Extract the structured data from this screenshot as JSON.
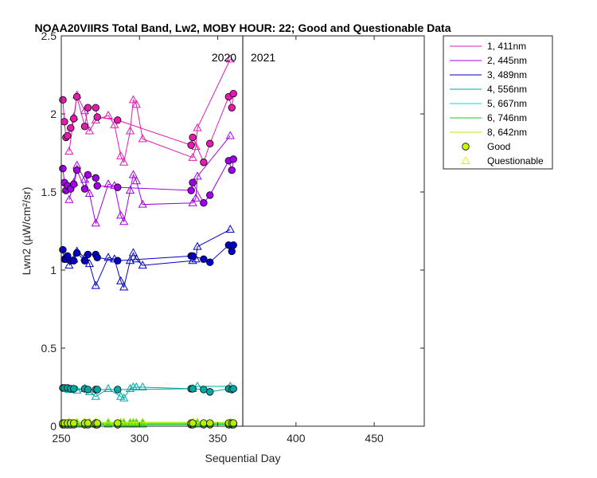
{
  "chart_data": {
    "type": "line",
    "title": "NOAA20VIIRS Total Band, Lw2, MOBY HOUR: 22;  Good and Questionable Data",
    "xlabel": "Sequential Day",
    "ylabel": "Lwn2 (µW/cm²/sr)",
    "xlim": [
      250,
      482
    ],
    "ylim": [
      0,
      2.5
    ],
    "xticks": [
      250,
      300,
      350,
      400,
      450
    ],
    "yticks": [
      0,
      0.5,
      1,
      1.5,
      2,
      2.5
    ],
    "xtick_labels": [
      "250",
      "300",
      "350",
      "400",
      "450"
    ],
    "ytick_labels": [
      "0",
      "0.5",
      "1",
      "1.5",
      "2",
      "2.5"
    ],
    "grid": false,
    "legend_position": "outside-top-right",
    "year_divider": {
      "x": 366,
      "left_label": "2020",
      "right_label": "2021"
    },
    "series": [
      {
        "name": "1, 411nm",
        "color": "#e31cb0",
        "good": [
          [
            251,
            2.09
          ],
          [
            252,
            1.95
          ],
          [
            253,
            1.85
          ],
          [
            254,
            1.86
          ],
          [
            256,
            1.91
          ],
          [
            258,
            1.97
          ],
          [
            260,
            2.11
          ],
          [
            265,
            1.92
          ],
          [
            267,
            2.04
          ],
          [
            272,
            2.04
          ],
          [
            273,
            1.98
          ],
          [
            286,
            1.96
          ],
          [
            333,
            1.8
          ],
          [
            334,
            1.85
          ],
          [
            341,
            1.69
          ],
          [
            345,
            1.81
          ],
          [
            357,
            2.11
          ],
          [
            359,
            2.04
          ],
          [
            360,
            2.13
          ]
        ],
        "questionable": [
          [
            255,
            1.76
          ],
          [
            258,
            1.98
          ],
          [
            260,
            2.12
          ],
          [
            265,
            2.02
          ],
          [
            268,
            1.89
          ],
          [
            272,
            1.96
          ],
          [
            280,
            1.99
          ],
          [
            284,
            1.93
          ],
          [
            288,
            1.73
          ],
          [
            290,
            1.69
          ],
          [
            294,
            1.89
          ],
          [
            296,
            2.09
          ],
          [
            298,
            2.06
          ],
          [
            302,
            1.84
          ],
          [
            334,
            1.72
          ],
          [
            336,
            1.79
          ],
          [
            337,
            1.91
          ],
          [
            358,
            2.35
          ]
        ]
      },
      {
        "name": "2, 445nm",
        "color": "#a100e6",
        "good": [
          [
            251,
            1.65
          ],
          [
            252,
            1.56
          ],
          [
            253,
            1.51
          ],
          [
            254,
            1.54
          ],
          [
            256,
            1.52
          ],
          [
            258,
            1.55
          ],
          [
            260,
            1.64
          ],
          [
            265,
            1.52
          ],
          [
            267,
            1.61
          ],
          [
            272,
            1.59
          ],
          [
            273,
            1.54
          ],
          [
            286,
            1.53
          ],
          [
            333,
            1.51
          ],
          [
            334,
            1.56
          ],
          [
            341,
            1.43
          ],
          [
            345,
            1.48
          ],
          [
            357,
            1.7
          ],
          [
            359,
            1.64
          ],
          [
            360,
            1.71
          ]
        ],
        "questionable": [
          [
            255,
            1.45
          ],
          [
            258,
            1.56
          ],
          [
            260,
            1.67
          ],
          [
            265,
            1.58
          ],
          [
            268,
            1.49
          ],
          [
            272,
            1.3
          ],
          [
            280,
            1.55
          ],
          [
            284,
            1.54
          ],
          [
            288,
            1.35
          ],
          [
            290,
            1.31
          ],
          [
            294,
            1.51
          ],
          [
            296,
            1.61
          ],
          [
            298,
            1.57
          ],
          [
            302,
            1.42
          ],
          [
            334,
            1.43
          ],
          [
            336,
            1.46
          ],
          [
            337,
            1.6
          ],
          [
            358,
            1.86
          ]
        ]
      },
      {
        "name": "3, 489nm",
        "color": "#0000c8",
        "good": [
          [
            251,
            1.13
          ],
          [
            252,
            1.07
          ],
          [
            253,
            1.07
          ],
          [
            254,
            1.09
          ],
          [
            256,
            1.06
          ],
          [
            258,
            1.06
          ],
          [
            260,
            1.11
          ],
          [
            265,
            1.06
          ],
          [
            267,
            1.1
          ],
          [
            272,
            1.1
          ],
          [
            273,
            1.08
          ],
          [
            286,
            1.06
          ],
          [
            333,
            1.09
          ],
          [
            334,
            1.09
          ],
          [
            341,
            1.07
          ],
          [
            345,
            1.05
          ],
          [
            357,
            1.16
          ],
          [
            359,
            1.12
          ],
          [
            360,
            1.16
          ]
        ],
        "questionable": [
          [
            255,
            1.03
          ],
          [
            258,
            1.07
          ],
          [
            260,
            1.12
          ],
          [
            265,
            1.08
          ],
          [
            268,
            1.04
          ],
          [
            272,
            0.9
          ],
          [
            280,
            1.08
          ],
          [
            284,
            1.07
          ],
          [
            288,
            0.93
          ],
          [
            290,
            0.89
          ],
          [
            294,
            1.06
          ],
          [
            296,
            1.11
          ],
          [
            298,
            1.07
          ],
          [
            302,
            1.03
          ],
          [
            334,
            1.06
          ],
          [
            336,
            1.07
          ],
          [
            337,
            1.15
          ],
          [
            358,
            1.26
          ]
        ]
      },
      {
        "name": "4, 556nm",
        "color": "#00a8a8",
        "good": [
          [
            251,
            0.245
          ],
          [
            252,
            0.245
          ],
          [
            254,
            0.245
          ],
          [
            256,
            0.24
          ],
          [
            258,
            0.24
          ],
          [
            265,
            0.24
          ],
          [
            267,
            0.235
          ],
          [
            272,
            0.235
          ],
          [
            273,
            0.235
          ],
          [
            286,
            0.235
          ],
          [
            333,
            0.24
          ],
          [
            334,
            0.24
          ],
          [
            341,
            0.235
          ],
          [
            345,
            0.22
          ],
          [
            357,
            0.24
          ],
          [
            359,
            0.235
          ],
          [
            360,
            0.24
          ]
        ],
        "questionable": [
          [
            255,
            0.235
          ],
          [
            260,
            0.23
          ],
          [
            265,
            0.24
          ],
          [
            268,
            0.22
          ],
          [
            272,
            0.19
          ],
          [
            280,
            0.24
          ],
          [
            288,
            0.19
          ],
          [
            290,
            0.18
          ],
          [
            294,
            0.24
          ],
          [
            296,
            0.25
          ],
          [
            298,
            0.25
          ],
          [
            302,
            0.25
          ],
          [
            334,
            0.24
          ],
          [
            337,
            0.255
          ],
          [
            358,
            0.255
          ]
        ]
      },
      {
        "name": "5, 667nm",
        "color": "#00d8f0",
        "good": [
          [
            251,
            0.015
          ],
          [
            252,
            0.015
          ],
          [
            254,
            0.015
          ],
          [
            256,
            0.015
          ],
          [
            258,
            0.015
          ],
          [
            265,
            0.015
          ],
          [
            267,
            0.015
          ],
          [
            272,
            0.015
          ],
          [
            273,
            0.015
          ],
          [
            286,
            0.015
          ],
          [
            333,
            0.015
          ],
          [
            334,
            0.015
          ],
          [
            341,
            0.015
          ],
          [
            345,
            0.015
          ],
          [
            357,
            0.015
          ],
          [
            359,
            0.015
          ],
          [
            360,
            0.015
          ]
        ],
        "questionable": [
          [
            255,
            0.02
          ],
          [
            260,
            0.02
          ],
          [
            265,
            0.02
          ],
          [
            268,
            0.02
          ],
          [
            272,
            0.02
          ],
          [
            280,
            0.02
          ],
          [
            288,
            0.02
          ],
          [
            290,
            0.02
          ],
          [
            294,
            0.02
          ],
          [
            296,
            0.02
          ],
          [
            298,
            0.02
          ],
          [
            302,
            0.02
          ],
          [
            334,
            0.02
          ],
          [
            337,
            0.02
          ],
          [
            358,
            0.02
          ]
        ]
      },
      {
        "name": "6, 746nm",
        "color": "#1ec81e",
        "good": [
          [
            251,
            0.01
          ],
          [
            252,
            0.01
          ],
          [
            254,
            0.01
          ],
          [
            256,
            0.01
          ],
          [
            258,
            0.01
          ],
          [
            265,
            0.01
          ],
          [
            267,
            0.01
          ],
          [
            272,
            0.01
          ],
          [
            273,
            0.01
          ],
          [
            286,
            0.01
          ],
          [
            333,
            0.01
          ],
          [
            334,
            0.01
          ],
          [
            341,
            0.01
          ],
          [
            345,
            0.01
          ],
          [
            357,
            0.01
          ],
          [
            359,
            0.01
          ],
          [
            360,
            0.01
          ]
        ],
        "questionable": [
          [
            255,
            0.012
          ],
          [
            260,
            0.012
          ],
          [
            265,
            0.012
          ],
          [
            268,
            0.012
          ],
          [
            272,
            0.012
          ],
          [
            280,
            0.012
          ],
          [
            288,
            0.012
          ],
          [
            290,
            0.012
          ],
          [
            294,
            0.012
          ],
          [
            296,
            0.012
          ],
          [
            298,
            0.012
          ],
          [
            302,
            0.012
          ],
          [
            334,
            0.012
          ],
          [
            337,
            0.012
          ],
          [
            358,
            0.012
          ]
        ]
      },
      {
        "name": "8, 642nm",
        "color": "#b4f000",
        "good": [
          [
            251,
            0.02
          ],
          [
            252,
            0.02
          ],
          [
            254,
            0.02
          ],
          [
            256,
            0.02
          ],
          [
            258,
            0.02
          ],
          [
            265,
            0.02
          ],
          [
            267,
            0.02
          ],
          [
            272,
            0.02
          ],
          [
            273,
            0.02
          ],
          [
            286,
            0.02
          ],
          [
            333,
            0.02
          ],
          [
            334,
            0.02
          ],
          [
            341,
            0.02
          ],
          [
            345,
            0.02
          ],
          [
            357,
            0.02
          ],
          [
            359,
            0.02
          ],
          [
            360,
            0.02
          ]
        ],
        "questionable": [
          [
            255,
            0.025
          ],
          [
            260,
            0.025
          ],
          [
            265,
            0.025
          ],
          [
            268,
            0.025
          ],
          [
            272,
            0.025
          ],
          [
            280,
            0.025
          ],
          [
            288,
            0.025
          ],
          [
            290,
            0.025
          ],
          [
            294,
            0.025
          ],
          [
            296,
            0.025
          ],
          [
            298,
            0.025
          ],
          [
            302,
            0.025
          ],
          [
            334,
            0.025
          ],
          [
            337,
            0.025
          ],
          [
            358,
            0.025
          ]
        ]
      }
    ],
    "legend_markers": [
      {
        "label": "Good",
        "marker": "circle",
        "fill": "#c8ff00",
        "stroke": "#000000"
      },
      {
        "label": "Questionable",
        "marker": "triangle",
        "fill": "none",
        "stroke": "#c8ff00"
      }
    ]
  }
}
